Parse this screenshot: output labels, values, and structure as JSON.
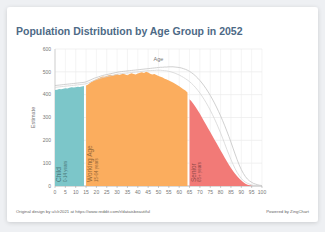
{
  "chart_data": {
    "type": "area",
    "title": "Population Distribution by Age Group in 2052",
    "x_label": "Age",
    "y_label": "Estimate",
    "credit": "Original design by u/clr2021 at https://www.reddit.com/r/dataisbeautiful",
    "powered_by": "Powered by ZingChart",
    "x": [
      0,
      1,
      2,
      3,
      4,
      5,
      6,
      7,
      8,
      9,
      10,
      11,
      12,
      13,
      14,
      15,
      16,
      17,
      18,
      19,
      20,
      21,
      22,
      23,
      24,
      25,
      26,
      27,
      28,
      29,
      30,
      31,
      32,
      33,
      34,
      35,
      36,
      37,
      38,
      39,
      40,
      41,
      42,
      43,
      44,
      45,
      46,
      47,
      48,
      49,
      50,
      51,
      52,
      53,
      54,
      55,
      56,
      57,
      58,
      59,
      60,
      61,
      62,
      63,
      64,
      65,
      66,
      67,
      68,
      69,
      70,
      71,
      72,
      73,
      74,
      75,
      76,
      77,
      78,
      79,
      80,
      81,
      82,
      83,
      84,
      85,
      86,
      87,
      88,
      89,
      90,
      91,
      92,
      93,
      94,
      95,
      96,
      97,
      98,
      99,
      100
    ],
    "xlim": [
      0,
      100
    ],
    "xticks": [
      0,
      5,
      10,
      15,
      20,
      25,
      30,
      35,
      40,
      45,
      50,
      55,
      60,
      65,
      70,
      75,
      80,
      85,
      90,
      95,
      100
    ],
    "ylim": [
      0,
      600
    ],
    "yticks": [
      0,
      100,
      200,
      300,
      400,
      500,
      600
    ],
    "grid": true,
    "series": [
      {
        "name": "Child",
        "range_label": "0-14 years",
        "type": "area",
        "color": "#7cc6c9",
        "values": [
          420,
          422,
          425,
          424,
          426,
          428,
          427,
          430,
          432,
          431,
          433,
          435,
          434,
          436,
          438,
          null,
          null,
          null,
          null,
          null,
          null,
          null,
          null,
          null,
          null,
          null,
          null,
          null,
          null,
          null,
          null,
          null,
          null,
          null,
          null,
          null,
          null,
          null,
          null,
          null,
          null,
          null,
          null,
          null,
          null,
          null,
          null,
          null,
          null,
          null,
          null,
          null,
          null,
          null,
          null,
          null,
          null,
          null,
          null,
          null,
          null,
          null,
          null,
          null,
          null,
          null,
          null,
          null,
          null,
          null,
          null,
          null,
          null,
          null,
          null,
          null,
          null,
          null,
          null,
          null,
          null,
          null,
          null,
          null,
          null,
          null,
          null,
          null,
          null,
          null,
          null,
          null,
          null,
          null,
          null,
          null,
          null,
          null,
          null,
          null,
          null
        ]
      },
      {
        "name": "Working Age",
        "range_label": "15-64 years",
        "type": "area",
        "color": "#fbad5e",
        "values": [
          null,
          null,
          null,
          null,
          null,
          null,
          null,
          null,
          null,
          null,
          null,
          null,
          null,
          null,
          null,
          440,
          445,
          452,
          458,
          463,
          468,
          472,
          476,
          480,
          478,
          482,
          485,
          487,
          484,
          488,
          490,
          486,
          489,
          492,
          488,
          485,
          490,
          494,
          491,
          488,
          493,
          496,
          498,
          495,
          500,
          497,
          492,
          488,
          490,
          486,
          482,
          478,
          475,
          470,
          466,
          462,
          458,
          453,
          448,
          442,
          437,
          430,
          424,
          418,
          410,
          null,
          null,
          null,
          null,
          null,
          null,
          null,
          null,
          null,
          null,
          null,
          null,
          null,
          null,
          null,
          null,
          null,
          null,
          null,
          null,
          null,
          null,
          null,
          null,
          null,
          null,
          null,
          null,
          null,
          null,
          null,
          null,
          null,
          null,
          null,
          null
        ]
      },
      {
        "name": "Senior",
        "range_label": "65+ years",
        "type": "area",
        "color": "#f27a77",
        "values": [
          null,
          null,
          null,
          null,
          null,
          null,
          null,
          null,
          null,
          null,
          null,
          null,
          null,
          null,
          null,
          null,
          null,
          null,
          null,
          null,
          null,
          null,
          null,
          null,
          null,
          null,
          null,
          null,
          null,
          null,
          null,
          null,
          null,
          null,
          null,
          null,
          null,
          null,
          null,
          null,
          null,
          null,
          null,
          null,
          null,
          null,
          null,
          null,
          null,
          null,
          null,
          null,
          null,
          null,
          null,
          null,
          null,
          null,
          null,
          null,
          null,
          null,
          null,
          null,
          null,
          380,
          370,
          358,
          345,
          331,
          316,
          300,
          284,
          268,
          252,
          236,
          220,
          204,
          188,
          172,
          156,
          140,
          124,
          108,
          93,
          79,
          66,
          54,
          43,
          33,
          24,
          16,
          10,
          6,
          3,
          1,
          0,
          0,
          0,
          0,
          0
        ]
      },
      {
        "type": "line",
        "color": "#c4c4c4",
        "values": [
          440,
          441,
          442,
          443,
          444,
          445,
          446,
          447,
          448,
          449,
          450,
          451,
          452,
          453,
          454,
          456,
          460,
          464,
          468,
          472,
          475,
          478,
          481,
          484,
          486,
          488,
          490,
          492,
          494,
          496,
          498,
          500,
          501,
          502,
          503,
          504,
          505,
          506,
          507,
          508,
          509,
          510,
          511,
          512,
          513,
          514,
          515,
          516,
          517,
          518,
          519,
          520,
          520,
          521,
          521,
          522,
          522,
          522,
          521,
          520,
          519,
          517,
          514,
          511,
          507,
          502,
          496,
          489,
          481,
          472,
          462,
          451,
          439,
          426,
          412,
          397,
          381,
          364,
          346,
          327,
          307,
          286,
          264,
          241,
          217,
          192,
          166,
          140,
          115,
          92,
          72,
          55,
          41,
          30,
          22,
          16,
          11,
          8,
          5,
          3,
          2
        ]
      },
      {
        "type": "line",
        "color": "#d6d6d6",
        "values": [
          432,
          433,
          434,
          435,
          436,
          437,
          438,
          439,
          440,
          441,
          442,
          443,
          444,
          445,
          446,
          448,
          451,
          455,
          459,
          463,
          466,
          469,
          472,
          475,
          477,
          479,
          481,
          483,
          485,
          487,
          489,
          491,
          492,
          493,
          494,
          495,
          496,
          497,
          498,
          499,
          500,
          501,
          502,
          503,
          504,
          505,
          505,
          506,
          506,
          507,
          507,
          507,
          506,
          505,
          504,
          502,
          500,
          497,
          494,
          490,
          486,
          481,
          476,
          470,
          464,
          457,
          449,
          440,
          430,
          419,
          407,
          394,
          380,
          365,
          349,
          332,
          314,
          295,
          275,
          254,
          232,
          209,
          185,
          161,
          138,
          116,
          95,
          76,
          59,
          45,
          33,
          24,
          17,
          12,
          8,
          5,
          3,
          2,
          1,
          1,
          0
        ]
      }
    ]
  }
}
